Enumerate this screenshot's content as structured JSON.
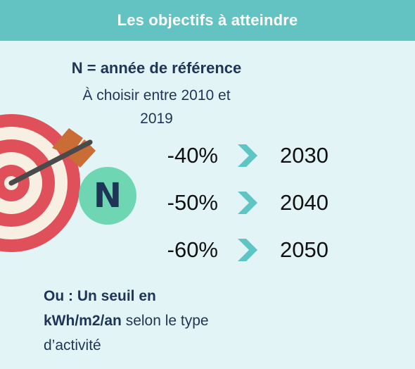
{
  "header": {
    "title": "Les objectifs à atteindre"
  },
  "reference": {
    "title": "N = année de référence",
    "subtitle_line1": "À choisir entre 2010 et",
    "subtitle_line2": "2019"
  },
  "badge": {
    "letter": "N",
    "color": "#6fd6b4"
  },
  "objectives": [
    {
      "reduction": "-40%",
      "year": "2030"
    },
    {
      "reduction": "-50%",
      "year": "2040"
    },
    {
      "reduction": "-60%",
      "year": "2050"
    }
  ],
  "footer": {
    "bold_line1": "Ou : Un seuil en",
    "bold_line2": "kWh/m2/an",
    "regular_line2": " selon le type",
    "line3": "d’activité"
  },
  "icons": {
    "target": "target-icon",
    "arrow": "arrow-icon",
    "chevron": "chevron-right-icon"
  },
  "colors": {
    "header": "#63c2c2",
    "background": "#e3f4f6",
    "text": "#1f3557",
    "target_red": "#e0505a",
    "target_cream": "#f7efe2",
    "arrow_fletch": "#c96c36",
    "chevron": "#5dc5c4"
  }
}
